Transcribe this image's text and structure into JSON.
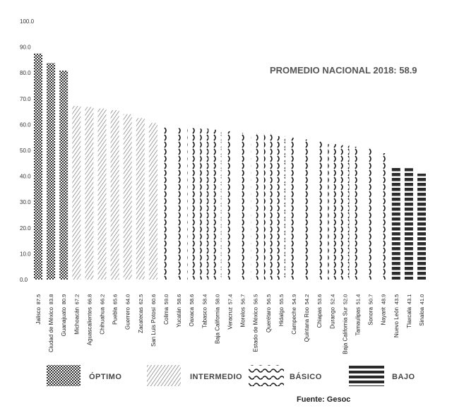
{
  "annotation": "PROMEDIO NACIONAL 2018: 58.9",
  "source": "Fuente: Gesoc",
  "legend": [
    {
      "label": "ÓPTIMO",
      "pattern": "dots"
    },
    {
      "label": "INTERMEDIO",
      "pattern": "hatch"
    },
    {
      "label": "BÁSICO",
      "pattern": "waves"
    },
    {
      "label": "BAJO",
      "pattern": "blocks"
    }
  ],
  "chart_data": {
    "type": "bar",
    "ylim": [
      0,
      100
    ],
    "yticks": [
      "0.0",
      "10.0",
      "20.0",
      "30.0",
      "40.0",
      "50.0",
      "60.0",
      "70.0",
      "80.0",
      "90.0",
      "100.0"
    ],
    "categories": [
      "Jalisco",
      "Ciudad de México",
      "Guanajuato",
      "Michoacán",
      "Aguascalientes",
      "Chihuahua",
      "Puebla",
      "Guerrero",
      "Zacatecas",
      "San Luis Potosí",
      "Colima",
      "Yucatán",
      "Oaxaca",
      "Tabasco",
      "Baja California",
      "Veracruz",
      "Morelos",
      "Estado de México",
      "Querétaro",
      "Hidalgo",
      "Campeche",
      "Quintana Roo",
      "Chiapas",
      "Durango",
      "Baja California Sur",
      "Tamaulipas",
      "Sonora",
      "Nayarit",
      "Nuevo León",
      "Tlaxcala",
      "Sinaloa"
    ],
    "values": [
      87.5,
      83.8,
      80.9,
      67.2,
      66.8,
      66.2,
      65.6,
      64.0,
      62.5,
      60.6,
      59.0,
      58.6,
      58.6,
      58.4,
      58.0,
      57.4,
      56.7,
      56.5,
      56.5,
      55.5,
      54.9,
      54.2,
      53.6,
      52.4,
      52.0,
      51.4,
      50.7,
      48.9,
      43.5,
      43.1,
      41.0
    ],
    "value_labels": [
      "87.5",
      "83.8",
      "80.9",
      "67.2",
      "66.8",
      "66.2",
      "65.6",
      "64.0",
      "62.5",
      "60.6",
      "59.0",
      "58.6",
      "58.6",
      "58.4",
      "58.0",
      "57.4",
      "56.7",
      "56.5",
      "56.5",
      "55.5",
      "54.9",
      "54.2",
      "53.6",
      "52.4",
      "52.0",
      "51.4",
      "50.7",
      "48.9",
      "43.5",
      "43.1",
      "41.0"
    ],
    "category_level": [
      "ÓPTIMO",
      "ÓPTIMO",
      "ÓPTIMO",
      "INTERMEDIO",
      "INTERMEDIO",
      "INTERMEDIO",
      "INTERMEDIO",
      "INTERMEDIO",
      "INTERMEDIO",
      "INTERMEDIO",
      "BÁSICO",
      "BÁSICO",
      "BÁSICO",
      "BÁSICO",
      "BÁSICO",
      "BÁSICO",
      "BÁSICO",
      "BÁSICO",
      "BÁSICO",
      "BÁSICO",
      "BÁSICO",
      "BÁSICO",
      "BÁSICO",
      "BÁSICO",
      "BÁSICO",
      "BÁSICO",
      "BÁSICO",
      "BÁSICO",
      "BAJO",
      "BAJO",
      "BAJO"
    ]
  }
}
